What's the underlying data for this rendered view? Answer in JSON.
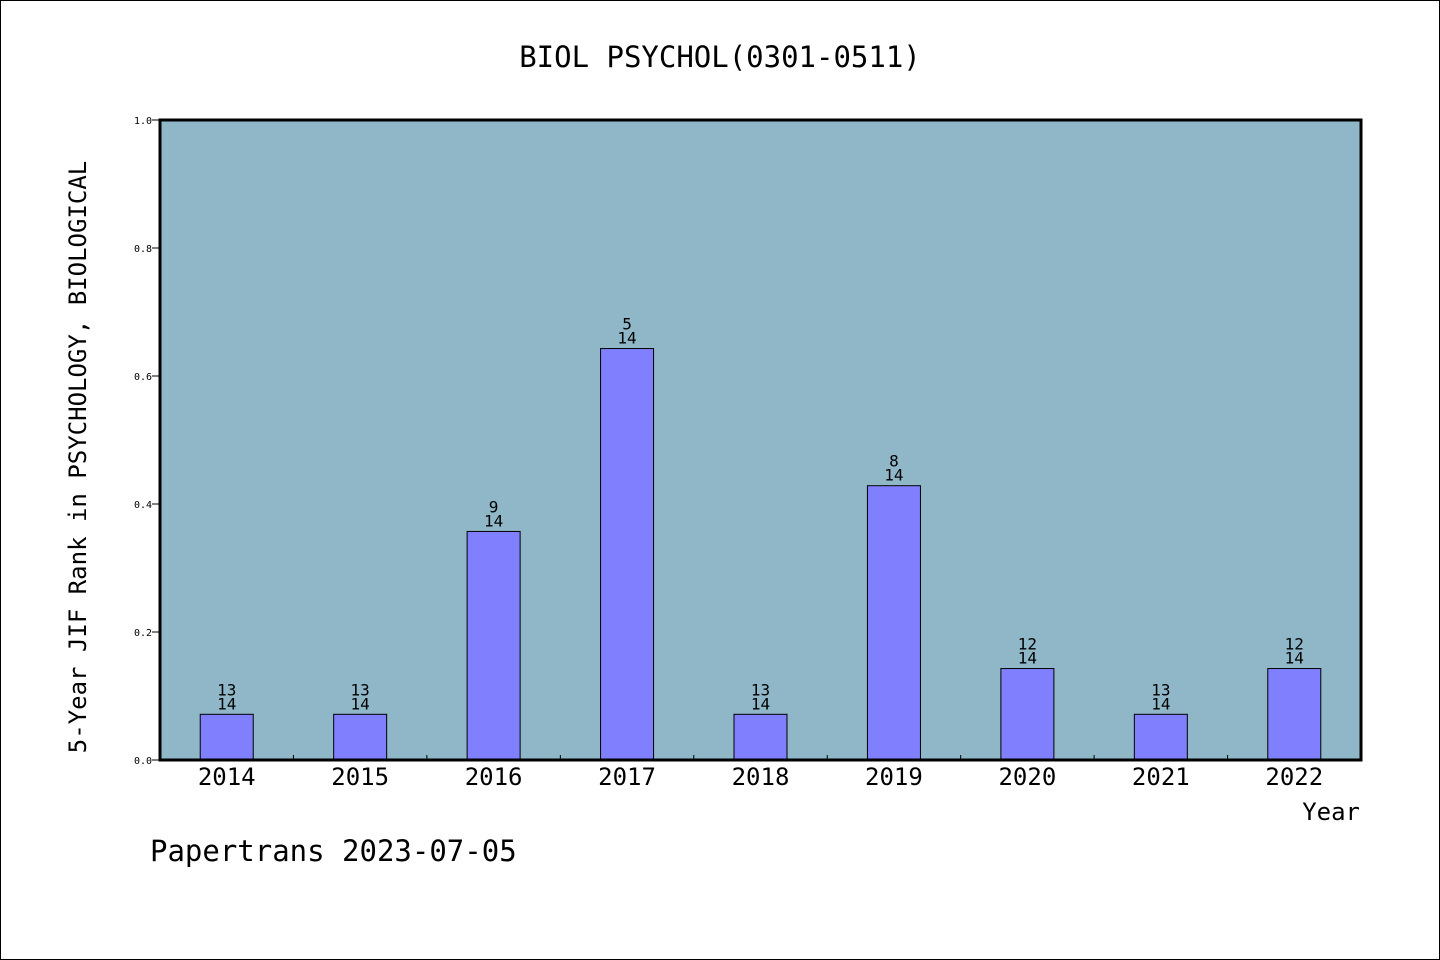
{
  "chart_data": {
    "type": "bar",
    "title": "BIOL PSYCHOL(0301-0511)",
    "xlabel": "Year",
    "ylabel": "5-Year JIF Rank in PSYCHOLOGY, BIOLOGICAL",
    "categories": [
      "2014",
      "2015",
      "2016",
      "2017",
      "2018",
      "2019",
      "2020",
      "2021",
      "2022"
    ],
    "values": [
      0.0714,
      0.0714,
      0.3571,
      0.6429,
      0.0714,
      0.4286,
      0.1429,
      0.0714,
      0.1429
    ],
    "rank_labels": [
      "13",
      "13",
      "9",
      "5",
      "13",
      "8",
      "12",
      "13",
      "12"
    ],
    "total_labels": [
      "14",
      "14",
      "14",
      "14",
      "14",
      "14",
      "14",
      "14",
      "14"
    ],
    "ylim": [
      0,
      1
    ],
    "yticks": [
      "0.0",
      "0.2",
      "0.4",
      "0.6",
      "0.8",
      "1.0"
    ],
    "grid": false,
    "colors": {
      "plot_background": "#8fb7c7",
      "bar": "#8080ff",
      "axis": "#000000"
    }
  },
  "footer": {
    "text": "Papertrans 2023-07-05"
  }
}
